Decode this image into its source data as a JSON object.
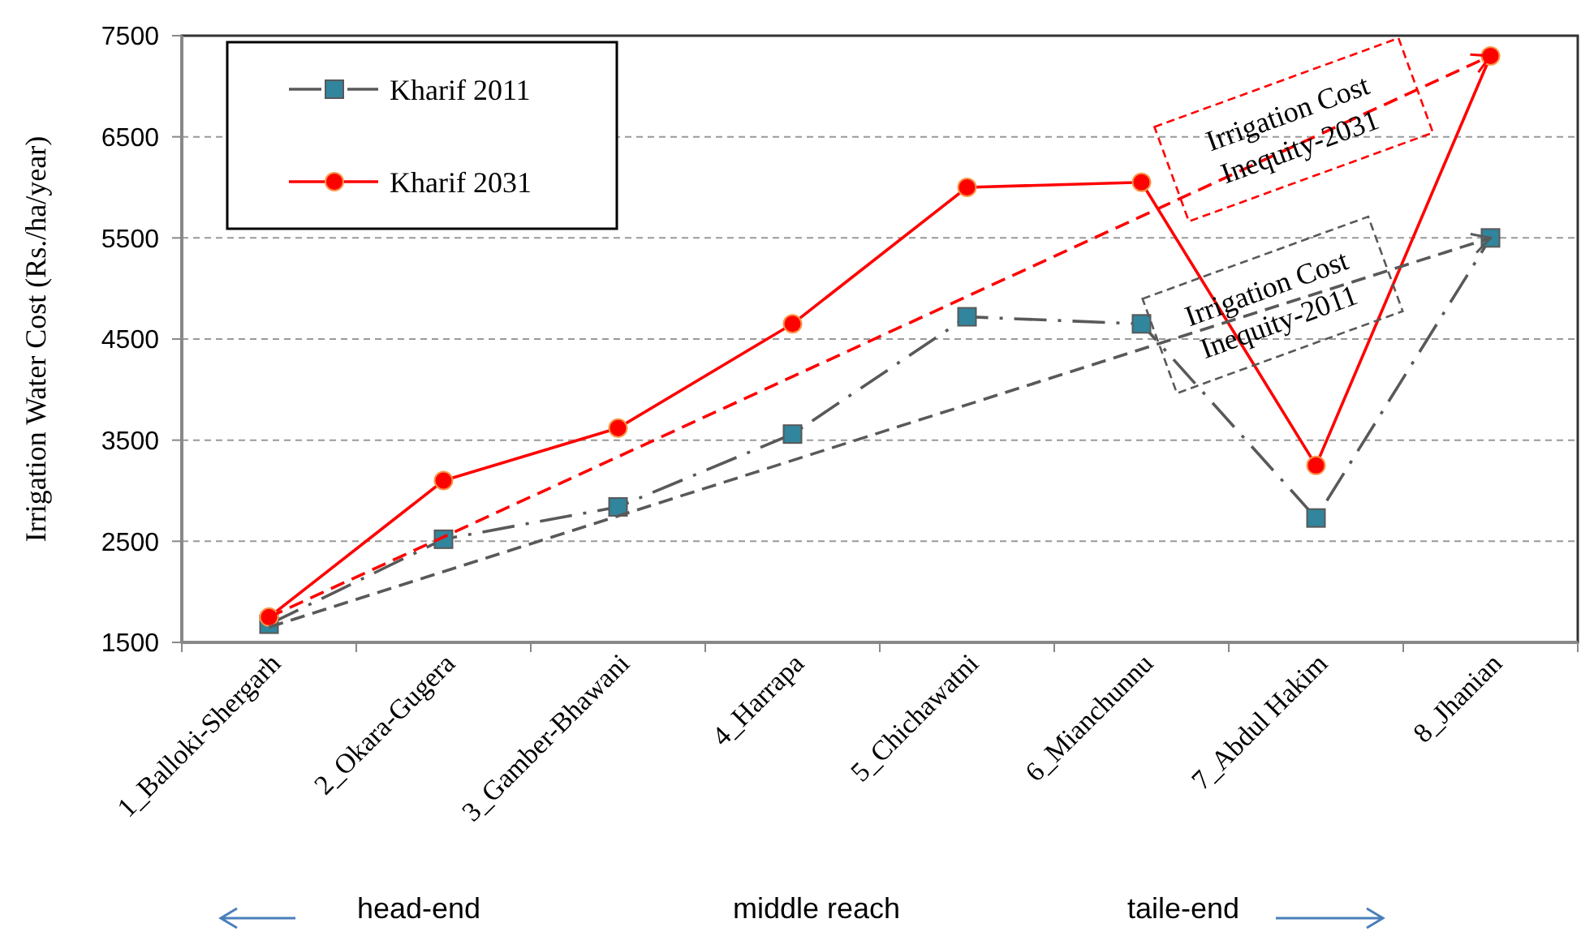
{
  "chart_data": {
    "type": "line",
    "ylabel": "Irrigation Water Cost (Rs./ha/year)",
    "categories": [
      "1_Balloki-Shergarh",
      "2_Okara-Gugera",
      "3_Gamber-Bhawani",
      "4_Harrapa",
      "5_Chichawatni",
      "6_Mianchunnu",
      "7_Abdul Hakim",
      "8_Jhanian"
    ],
    "series": [
      {
        "name": "Kharif 2011",
        "color": "#595959",
        "marker": "square",
        "line_style": "dashed",
        "values": [
          1680,
          2520,
          2840,
          3560,
          4720,
          4650,
          2730,
          5500
        ]
      },
      {
        "name": "Kharif 2031",
        "color": "#ff0000",
        "marker": "circle",
        "line_style": "solid",
        "values": [
          1750,
          3100,
          3620,
          4650,
          6000,
          6050,
          3250,
          7300
        ]
      },
      {
        "color": "#595959",
        "marker": "none",
        "line_style": "dashed",
        "x": [
          "1_Balloki-Shergarh",
          "8_Jhanian"
        ],
        "values": [
          1650,
          5500
        ]
      },
      {
        "color": "#ff0000",
        "marker": "none",
        "line_style": "dashed",
        "x": [
          "1_Balloki-Shergarh",
          "8_Jhanian"
        ],
        "values": [
          1750,
          7300
        ]
      }
    ],
    "ylim": [
      1500,
      7500
    ],
    "yticks": [
      1500,
      2500,
      3500,
      4500,
      5500,
      6500,
      7500
    ],
    "grid": "y",
    "legend": "top left",
    "annotations": [
      "Irrigation Cost\nInequity-2031",
      "Irrigation Cost\nInequity-2011",
      "head-end",
      "middle reach",
      "taile-end"
    ]
  }
}
